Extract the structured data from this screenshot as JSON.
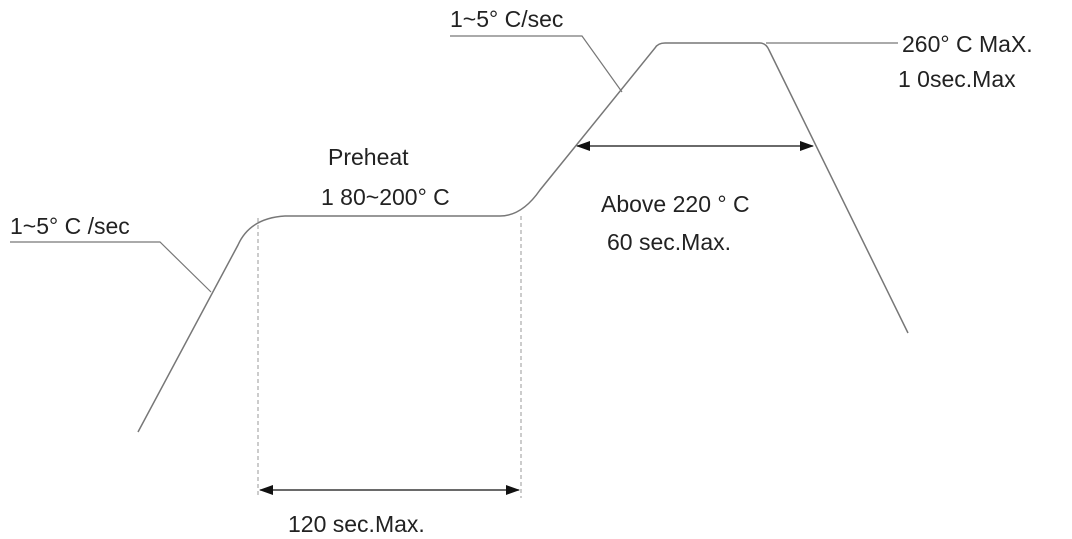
{
  "labels": {
    "ramp_up_rate": "1~5° C /sec",
    "ramp_to_peak_rate": "1~5° C/sec",
    "peak_temp": "260° C  MaX.",
    "peak_time": "1 0sec.Max",
    "preheat_title": "Preheat",
    "preheat_range": "1 80~200° C",
    "above_temp": "Above 220 ° C",
    "above_time": "60 sec.Max.",
    "preheat_time": "120 sec.Max."
  },
  "colors": {
    "curve": "#777777",
    "dimension": "#111111",
    "guide": "#999999",
    "text": "#222222"
  }
}
